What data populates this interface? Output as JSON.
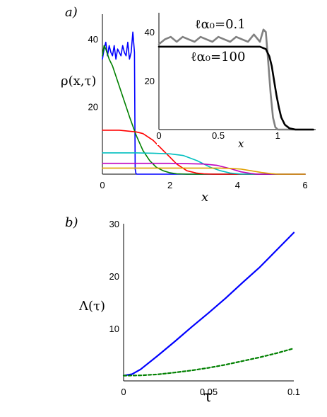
{
  "panel_labels": {
    "a": "a)",
    "b": "b)"
  },
  "chart_data": [
    {
      "id": "main",
      "type": "line",
      "xlabel": "x",
      "ylabel": "ρ(x,τ)",
      "xlim": [
        0,
        6
      ],
      "ylim": [
        0,
        45
      ],
      "xticks": [
        "0",
        "2",
        "4",
        "6"
      ],
      "yticks": [
        "20",
        "40"
      ],
      "series": [
        {
          "color": "#0000ff",
          "x": [
            0,
            0.05,
            0.1,
            0.15,
            0.2,
            0.25,
            0.3,
            0.35,
            0.4,
            0.45,
            0.5,
            0.55,
            0.6,
            0.65,
            0.7,
            0.75,
            0.8,
            0.85,
            0.9,
            0.95,
            0.97,
            0.99,
            1.01,
            6
          ],
          "y": [
            34,
            37,
            39,
            35,
            38,
            36,
            35,
            38,
            34,
            37,
            36,
            35,
            38,
            36,
            35,
            39,
            34,
            36,
            42,
            36,
            1.5,
            0.3,
            0,
            0
          ]
        },
        {
          "color": "#008000",
          "x": [
            0,
            0.05,
            0.1,
            0.2,
            0.3,
            0.5,
            0.7,
            0.8,
            1.0,
            1.2,
            1.4,
            1.6,
            1.8,
            2.0,
            2.2,
            2.5,
            6
          ],
          "y": [
            35,
            38,
            37,
            34,
            32,
            26,
            20,
            17,
            11.5,
            7,
            4,
            2,
            1,
            0.4,
            0.1,
            0,
            0
          ]
        },
        {
          "color": "#ff0000",
          "x": [
            0,
            0.5,
            1.0,
            1.2,
            1.5,
            1.8,
            2.0,
            2.2,
            2.5,
            2.8,
            3.0,
            3.3,
            6
          ],
          "y": [
            13,
            13,
            12.5,
            12,
            10,
            7,
            5,
            3,
            1,
            0.3,
            0.1,
            0,
            0
          ]
        },
        {
          "color": "#00bfbf",
          "x": [
            0,
            1.0,
            1.5,
            2.0,
            2.4,
            2.8,
            3.2,
            3.5,
            3.8,
            4.1,
            6
          ],
          "y": [
            6.3,
            6.3,
            6.2,
            6.0,
            5.5,
            4,
            2,
            1,
            0.3,
            0.05,
            0
          ]
        },
        {
          "color": "#bf00bf",
          "x": [
            0,
            2.0,
            2.5,
            3.0,
            3.4,
            3.8,
            4.1,
            4.4,
            4.6,
            6
          ],
          "y": [
            3.2,
            3.2,
            3.1,
            3.0,
            2.6,
            1.6,
            0.7,
            0.2,
            0,
            0
          ]
        },
        {
          "color": "#e0a000",
          "x": [
            0,
            3.0,
            3.5,
            3.8,
            4.1,
            4.4,
            4.7,
            5.0,
            5.2,
            6
          ],
          "y": [
            1.8,
            1.8,
            1.8,
            1.7,
            1.5,
            1.0,
            0.5,
            0.15,
            0,
            0
          ]
        }
      ]
    },
    {
      "id": "inset",
      "type": "line",
      "xlabel": "x",
      "xlim": [
        0,
        1.32
      ],
      "ylim": [
        0,
        45
      ],
      "xticks": [
        "0",
        "0.5",
        "1"
      ],
      "yticks": [
        "20",
        "40"
      ],
      "annotations": [
        "ℓα₀=0.1",
        "ℓα₀=100"
      ],
      "series": [
        {
          "name": "ℓα₀=0.1",
          "color": "#808080",
          "x": [
            0,
            0.05,
            0.1,
            0.15,
            0.2,
            0.25,
            0.3,
            0.35,
            0.4,
            0.45,
            0.5,
            0.55,
            0.6,
            0.65,
            0.7,
            0.75,
            0.8,
            0.85,
            0.88,
            0.9,
            0.92,
            0.94,
            0.96,
            0.98,
            1.0,
            1.3
          ],
          "y": [
            35,
            37,
            38,
            36,
            38,
            37,
            36,
            38,
            37,
            36,
            38,
            37,
            36,
            38,
            37,
            36,
            39,
            36,
            41,
            40,
            28,
            15,
            5,
            1,
            0,
            0
          ]
        },
        {
          "name": "ℓα₀=100",
          "color": "#000000",
          "x": [
            0,
            0.5,
            0.85,
            0.9,
            0.93,
            0.95,
            0.97,
            0.99,
            1.01,
            1.03,
            1.06,
            1.1,
            1.15,
            1.3
          ],
          "y": [
            34,
            34,
            34,
            33,
            30,
            26,
            20,
            14,
            9,
            5,
            2,
            0.5,
            0,
            0
          ]
        }
      ]
    },
    {
      "id": "lambda",
      "type": "line",
      "xlabel": "τ",
      "ylabel": "Λ(τ)",
      "xlim": [
        0,
        0.1
      ],
      "ylim": [
        0,
        30
      ],
      "xticks": [
        "0",
        "0.05",
        "0.1"
      ],
      "yticks": [
        "10",
        "20",
        "30"
      ],
      "series": [
        {
          "color": "#0000ff",
          "dash": "solid",
          "x": [
            0,
            0.005,
            0.01,
            0.02,
            0.03,
            0.04,
            0.05,
            0.06,
            0.07,
            0.08,
            0.09,
            0.1
          ],
          "y": [
            1,
            1.3,
            2.2,
            4.8,
            7.5,
            10.3,
            13.0,
            15.8,
            18.8,
            21.7,
            25.0,
            28.3
          ]
        },
        {
          "color": "#008000",
          "dash": "dashed",
          "x": [
            0,
            0.01,
            0.02,
            0.03,
            0.04,
            0.05,
            0.06,
            0.07,
            0.08,
            0.09,
            0.1
          ],
          "y": [
            1,
            1.05,
            1.25,
            1.6,
            2.0,
            2.5,
            3.1,
            3.8,
            4.5,
            5.3,
            6.2
          ]
        }
      ]
    }
  ]
}
